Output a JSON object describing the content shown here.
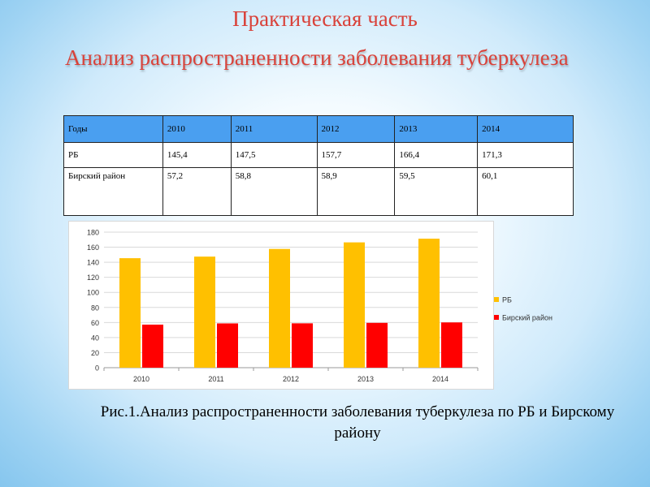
{
  "page": {
    "title": "Практическая часть",
    "subtitle": "Анализ распространенности заболевания  туберкулеза",
    "caption": "Рис.1.Анализ распространенности  заболевания туберкулеза по РБ и Бирскому району"
  },
  "table": {
    "header": [
      "Годы",
      "2010",
      "2011",
      "2012",
      "2013",
      "2014"
    ],
    "rows": [
      [
        "РБ",
        "145,4",
        "147,5",
        "157,7",
        "166,4",
        "171,3"
      ],
      [
        "Бирский район",
        "57,2",
        "58,8",
        "58,9",
        "59,5",
        "60,1"
      ]
    ]
  },
  "chart_data": {
    "type": "bar",
    "categories": [
      "2010",
      "2011",
      "2012",
      "2013",
      "2014"
    ],
    "series": [
      {
        "name": "РБ",
        "values": [
          145.4,
          147.5,
          157.7,
          166.4,
          171.3
        ],
        "color": "#ffc000"
      },
      {
        "name": "Бирский район",
        "values": [
          57.2,
          58.8,
          58.9,
          59.5,
          60.1
        ],
        "color": "#ff0000"
      }
    ],
    "ylim": [
      0,
      180
    ],
    "yticks": [
      0,
      20,
      40,
      60,
      80,
      100,
      120,
      140,
      160,
      180
    ],
    "grid": true,
    "legend": "right"
  },
  "colors": {
    "title": "#d9423a",
    "table_header": "#4a9ff0"
  }
}
